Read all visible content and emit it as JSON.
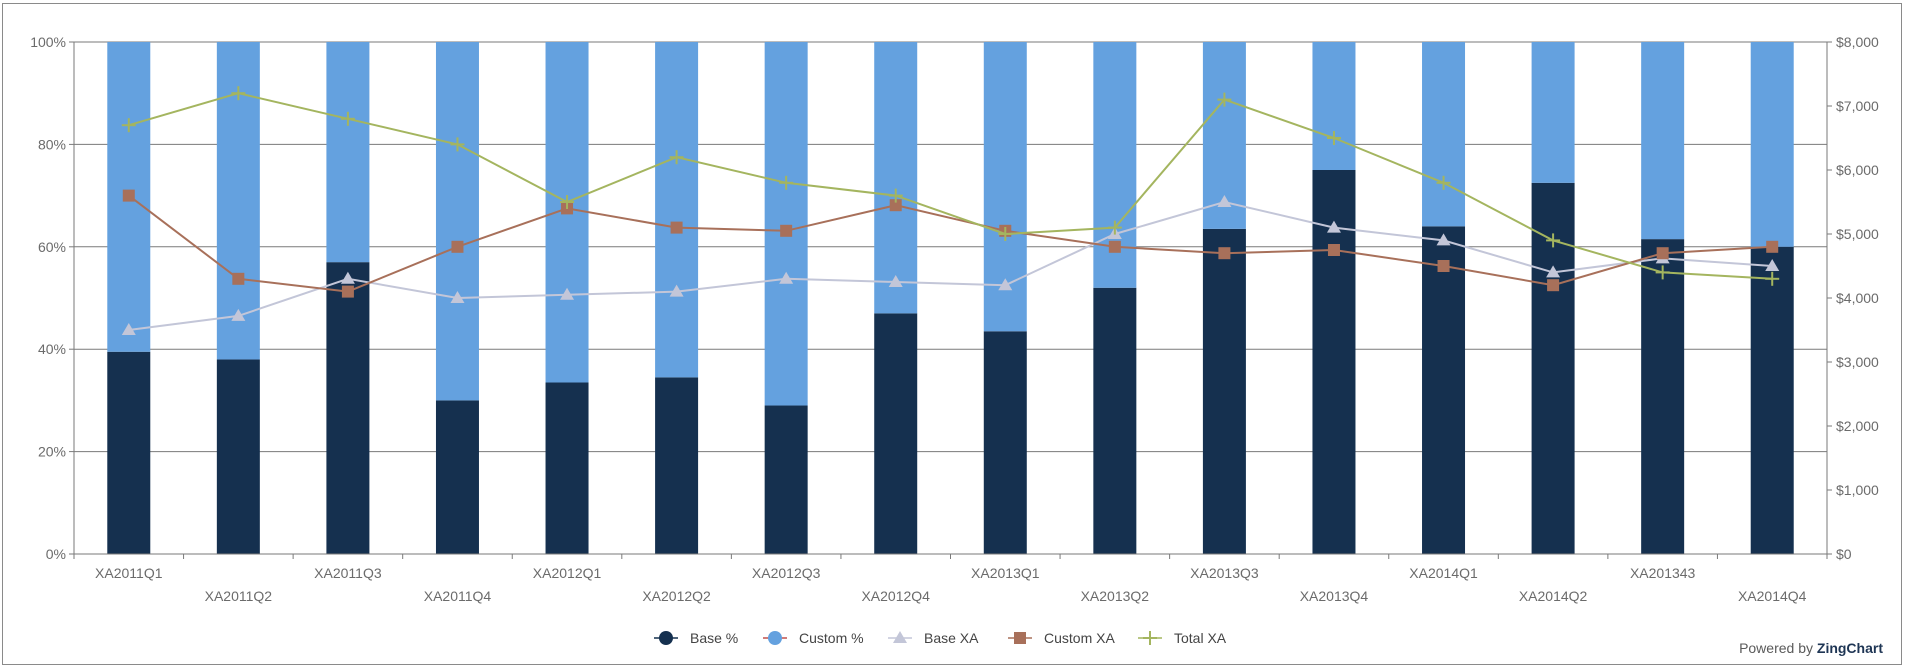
{
  "chart_data": {
    "type": "bar",
    "stacked": true,
    "categories": [
      "XA2011Q1",
      "XA2011Q2",
      "XA2011Q3",
      "XA2011Q4",
      "XA2012Q1",
      "XA2012Q2",
      "XA2012Q3",
      "XA2012Q4",
      "XA2013Q1",
      "XA2013Q2",
      "XA2013Q3",
      "XA2013Q4",
      "XA2014Q1",
      "XA2014Q2",
      "XA201343",
      "XA2014Q4"
    ],
    "bar_series": [
      {
        "name": "Base %",
        "color": "#15304f",
        "values": [
          39.5,
          38,
          57,
          30,
          33.5,
          34.5,
          29,
          47,
          43.5,
          52,
          63.5,
          75,
          64,
          72.5,
          61.5,
          60
        ]
      },
      {
        "name": "Custom %",
        "color": "#64a1df",
        "values": [
          60.5,
          62,
          43,
          70,
          66.5,
          65.5,
          71,
          53,
          56.5,
          48,
          36.5,
          25,
          36,
          27.5,
          38.5,
          40
        ]
      }
    ],
    "line_series": [
      {
        "name": "Base XA",
        "color": "#c3c6d8",
        "marker": "triangle",
        "values": [
          3500,
          3720,
          4300,
          4000,
          4050,
          4100,
          4300,
          4250,
          4200,
          5000,
          5500,
          5100,
          4900,
          4400,
          4620,
          4500
        ]
      },
      {
        "name": "Custom XA",
        "color": "#a8705a",
        "marker": "square",
        "values": [
          5600,
          4300,
          4100,
          4800,
          5400,
          5100,
          5050,
          5450,
          5050,
          4800,
          4700,
          4750,
          4500,
          4200,
          4700,
          4800
        ]
      },
      {
        "name": "Total XA",
        "color": "#a4b55f",
        "marker": "plus",
        "values": [
          6700,
          7200,
          6800,
          6400,
          5500,
          6200,
          5800,
          5600,
          5000,
          5100,
          7100,
          6500,
          5800,
          4900,
          4400,
          4300
        ]
      }
    ],
    "y_left": {
      "ticks": [
        "0%",
        "20%",
        "40%",
        "60%",
        "80%",
        "100%"
      ],
      "range": [
        0,
        100
      ]
    },
    "y_right": {
      "ticks": [
        "$0",
        "$1,000",
        "$2,000",
        "$3,000",
        "$4,000",
        "$5,000",
        "$6,000",
        "$7,000",
        "$8,000"
      ],
      "range": [
        0,
        8000
      ]
    },
    "grid": true,
    "legend_position": "bottom-center"
  },
  "legend": [
    {
      "name": "Base %",
      "marker": "circle",
      "marker_color": "#15304f",
      "line_color": "#15304f"
    },
    {
      "name": "Custom %",
      "marker": "circle",
      "marker_color": "#64a1df",
      "line_color": "#c0504d"
    },
    {
      "name": "Base XA",
      "marker": "triangle",
      "marker_color": "#c3c6d8",
      "line_color": "#c3c6d8"
    },
    {
      "name": "Custom XA",
      "marker": "square",
      "marker_color": "#a8705a",
      "line_color": "#a8705a"
    },
    {
      "name": "Total XA",
      "marker": "plus",
      "marker_color": "#a4b55f",
      "line_color": "#a4b55f"
    }
  ],
  "credit": {
    "prefix": "Powered by",
    "brand": "ZingChart"
  }
}
